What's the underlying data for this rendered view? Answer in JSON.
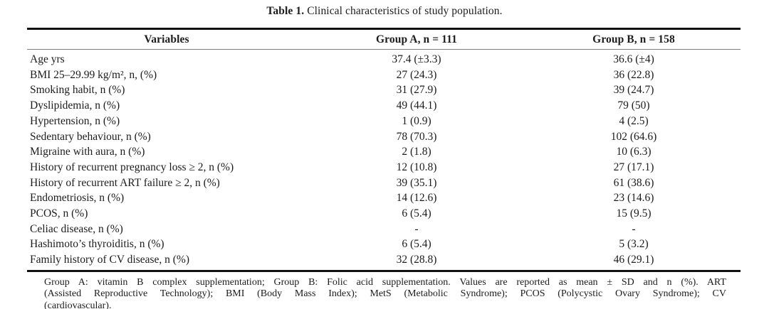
{
  "caption": {
    "label": "Table 1.",
    "text": "Clinical characteristics of study population."
  },
  "table": {
    "columns": [
      "Variables",
      "Group A, n = 111",
      "Group B, n = 158"
    ],
    "rows": [
      {
        "variable": "Age yrs",
        "group_a": "37.4 (±3.3)",
        "group_b": "36.6 (±4)"
      },
      {
        "variable": "BMI 25–29.99 kg/m², n, (%)",
        "group_a": "27 (24.3)",
        "group_b": "36 (22.8)"
      },
      {
        "variable": "Smoking habit, n (%)",
        "group_a": "31 (27.9)",
        "group_b": "39 (24.7)"
      },
      {
        "variable": "Dyslipidemia, n (%)",
        "group_a": "49 (44.1)",
        "group_b": "79 (50)"
      },
      {
        "variable": "Hypertension, n (%)",
        "group_a": "1 (0.9)",
        "group_b": "4 (2.5)"
      },
      {
        "variable": "Sedentary behaviour, n (%)",
        "group_a": "78 (70.3)",
        "group_b": "102 (64.6)"
      },
      {
        "variable": "Migraine with aura, n (%)",
        "group_a": "2 (1.8)",
        "group_b": "10 (6.3)"
      },
      {
        "variable": "History of recurrent pregnancy loss ≥ 2, n (%)",
        "group_a": "12 (10.8)",
        "group_b": "27 (17.1)"
      },
      {
        "variable": "History of recurrent ART failure ≥ 2, n (%)",
        "group_a": "39 (35.1)",
        "group_b": "61 (38.6)"
      },
      {
        "variable": "Endometriosis, n (%)",
        "group_a": "14 (12.6)",
        "group_b": "23 (14.6)"
      },
      {
        "variable": "PCOS, n (%)",
        "group_a": "6 (5.4)",
        "group_b": "15 (9.5)"
      },
      {
        "variable": "Celiac disease, n (%)",
        "group_a": "-",
        "group_b": "-"
      },
      {
        "variable": "Hashimoto’s thyroiditis, n (%)",
        "group_a": "6 (5.4)",
        "group_b": "5 (3.2)"
      },
      {
        "variable": "Family history of CV disease, n (%)",
        "group_a": "32 (28.8)",
        "group_b": "46 (29.1)"
      }
    ]
  },
  "footnote": {
    "lines": [
      "Group A: vitamin B complex supplementation; Group B: Folic acid supplementation. Values are reported as mean ± SD and n (%). ART",
      "(Assisted Reproductive Technology); BMI (Body Mass Index); MetS (Metabolic Syndrome); PCOS (Polycystic Ovary Syndrome); CV",
      "(cardiovascular)."
    ]
  },
  "colors": {
    "background": "#ffffff",
    "text": "#1c1c1c",
    "rule_heavy": "#111111",
    "rule_light": "#7d7d7d"
  }
}
